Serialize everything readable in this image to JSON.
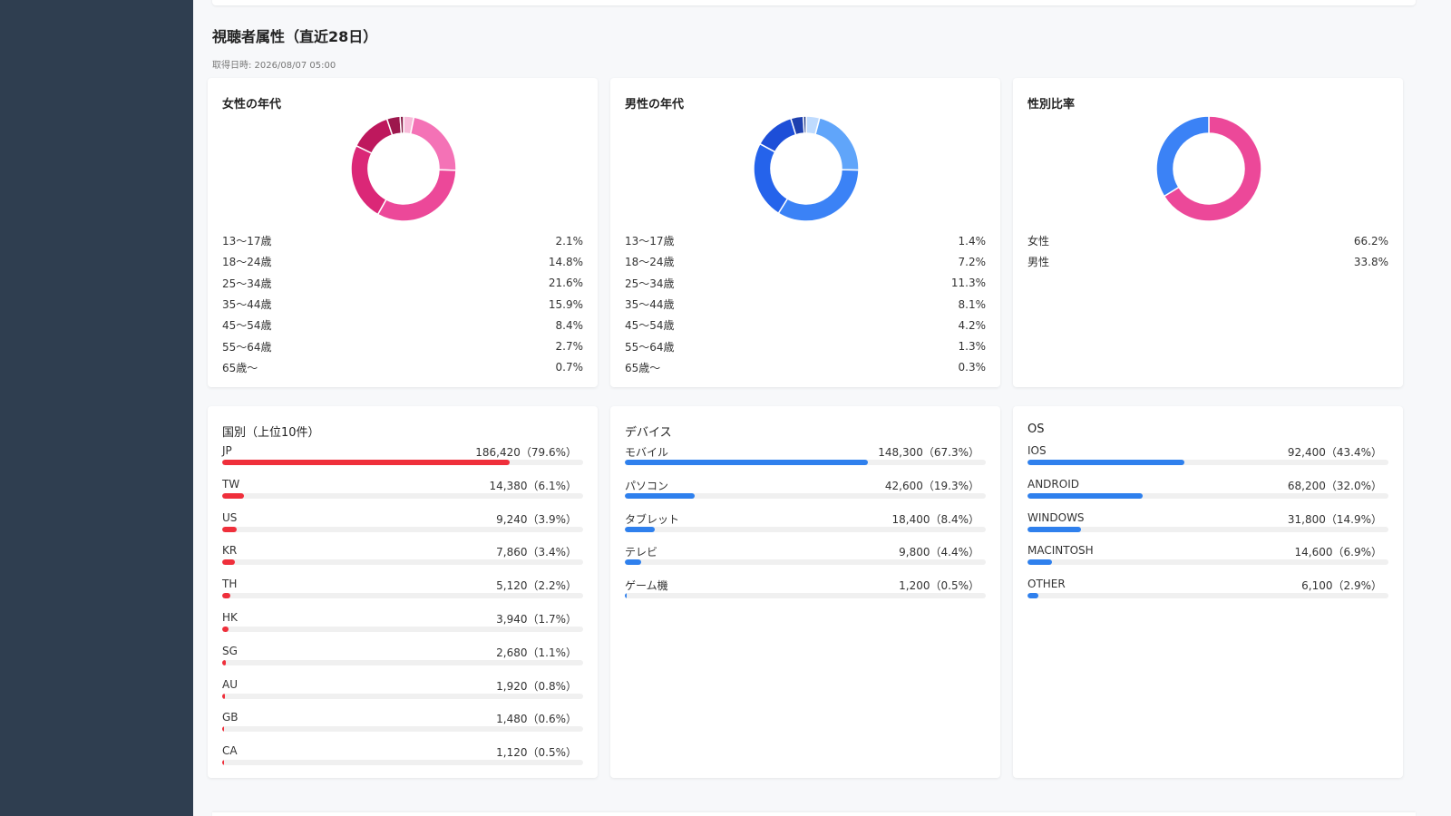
{
  "section": {
    "title": "視聴者属性（直近28日）",
    "fetched": "取得日時: 2026/08/07 05:00"
  },
  "female_age": {
    "title": "女性の年代",
    "items": [
      {
        "label": "13〜17歳",
        "display": "2.1%",
        "value": 2.1,
        "color": "#f8bbd9"
      },
      {
        "label": "18〜24歳",
        "display": "14.8%",
        "value": 14.8,
        "color": "#f472b6"
      },
      {
        "label": "25〜34歳",
        "display": "21.6%",
        "value": 21.6,
        "color": "#ec4899"
      },
      {
        "label": "35〜44歳",
        "display": "15.9%",
        "value": 15.9,
        "color": "#db2777"
      },
      {
        "label": "45〜54歳",
        "display": "8.4%",
        "value": 8.4,
        "color": "#be185d"
      },
      {
        "label": "55〜64歳",
        "display": "2.7%",
        "value": 2.7,
        "color": "#9d174d"
      },
      {
        "label": "65歳〜",
        "display": "0.7%",
        "value": 0.7,
        "color": "#831843"
      }
    ]
  },
  "male_age": {
    "title": "男性の年代",
    "items": [
      {
        "label": "13〜17歳",
        "display": "1.4%",
        "value": 1.4,
        "color": "#bfdbfe"
      },
      {
        "label": "18〜24歳",
        "display": "7.2%",
        "value": 7.2,
        "color": "#60a5fa"
      },
      {
        "label": "25〜34歳",
        "display": "11.3%",
        "value": 11.3,
        "color": "#3b82f6"
      },
      {
        "label": "35〜44歳",
        "display": "8.1%",
        "value": 8.1,
        "color": "#2563eb"
      },
      {
        "label": "45〜54歳",
        "display": "4.2%",
        "value": 4.2,
        "color": "#1d4ed8"
      },
      {
        "label": "55〜64歳",
        "display": "1.3%",
        "value": 1.3,
        "color": "#1e40af"
      },
      {
        "label": "65歳〜",
        "display": "0.3%",
        "value": 0.3,
        "color": "#1e3a8a"
      }
    ]
  },
  "gender": {
    "title": "性別比率",
    "items": [
      {
        "label": "女性",
        "display": "66.2%",
        "value": 66.2,
        "color": "#ec4899"
      },
      {
        "label": "男性",
        "display": "33.8%",
        "value": 33.8,
        "color": "#3b82f6"
      }
    ]
  },
  "countries": {
    "title": "国別（上位10件）",
    "color": "#ef2f3b",
    "items": [
      {
        "label": "JP",
        "display": "186,420（79.6%）",
        "pct": 79.6
      },
      {
        "label": "TW",
        "display": "14,380（6.1%）",
        "pct": 6.1
      },
      {
        "label": "US",
        "display": "9,240（3.9%）",
        "pct": 3.9
      },
      {
        "label": "KR",
        "display": "7,860（3.4%）",
        "pct": 3.4
      },
      {
        "label": "TH",
        "display": "5,120（2.2%）",
        "pct": 2.2
      },
      {
        "label": "HK",
        "display": "3,940（1.7%）",
        "pct": 1.7
      },
      {
        "label": "SG",
        "display": "2,680（1.1%）",
        "pct": 1.1
      },
      {
        "label": "AU",
        "display": "1,920（0.8%）",
        "pct": 0.8
      },
      {
        "label": "GB",
        "display": "1,480（0.6%）",
        "pct": 0.6
      },
      {
        "label": "CA",
        "display": "1,120（0.5%）",
        "pct": 0.5
      }
    ]
  },
  "devices": {
    "title": "デバイス",
    "color": "#2f80ed",
    "items": [
      {
        "label": "モバイル",
        "display": "148,300（67.3%）",
        "pct": 67.3
      },
      {
        "label": "パソコン",
        "display": "42,600（19.3%）",
        "pct": 19.3
      },
      {
        "label": "タブレット",
        "display": "18,400（8.4%）",
        "pct": 8.4
      },
      {
        "label": "テレビ",
        "display": "9,800（4.4%）",
        "pct": 4.4
      },
      {
        "label": "ゲーム機",
        "display": "1,200（0.5%）",
        "pct": 0.5
      }
    ]
  },
  "os": {
    "title": "OS",
    "color": "#2f80ed",
    "items": [
      {
        "label": "IOS",
        "display": "92,400（43.4%）",
        "pct": 43.4
      },
      {
        "label": "ANDROID",
        "display": "68,200（32.0%）",
        "pct": 32.0
      },
      {
        "label": "WINDOWS",
        "display": "31,800（14.9%）",
        "pct": 14.9
      },
      {
        "label": "MACINTOSH",
        "display": "14,600（6.9%）",
        "pct": 6.9
      },
      {
        "label": "OTHER",
        "display": "6,100（2.9%）",
        "pct": 2.9
      }
    ]
  }
}
